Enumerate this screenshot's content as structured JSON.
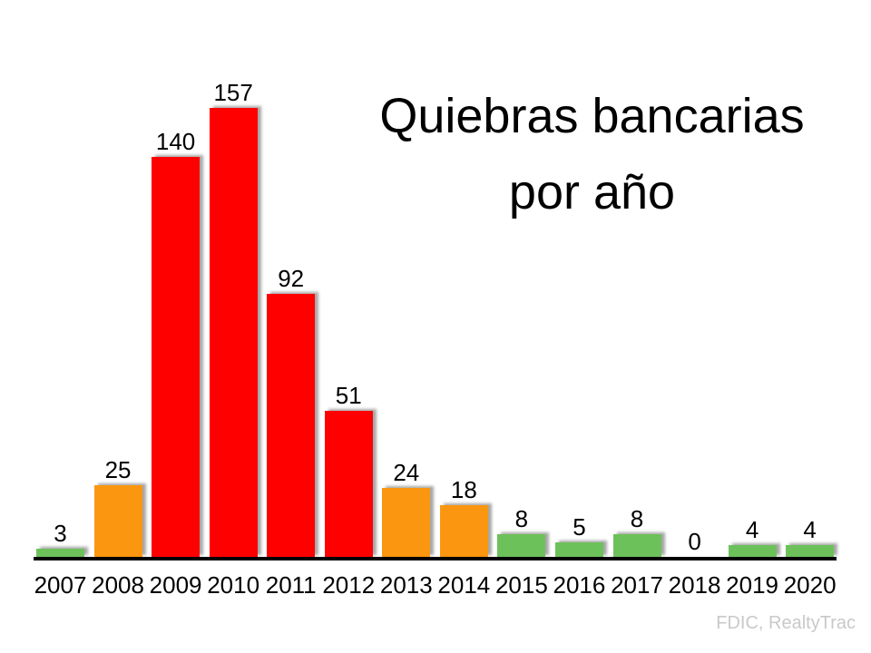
{
  "slide": {
    "title": "Quiebras bancarias por año",
    "source": "FDIC, RealtyTrac"
  },
  "chart_data": {
    "type": "bar",
    "title": "Quiebras bancarias por año",
    "categories": [
      "2007",
      "2008",
      "2009",
      "2010",
      "2011",
      "2012",
      "2013",
      "2014",
      "2015",
      "2016",
      "2017",
      "2018",
      "2019",
      "2020"
    ],
    "values": [
      3,
      25,
      140,
      157,
      92,
      51,
      24,
      18,
      8,
      5,
      8,
      0,
      4,
      4
    ],
    "bar_colors": [
      "green",
      "orange",
      "red",
      "red",
      "red",
      "red",
      "orange",
      "orange",
      "green",
      "green",
      "green",
      "none",
      "green",
      "green"
    ],
    "color_map": {
      "red": "#fe0000",
      "orange": "#fb9611",
      "green": "#6dc15a"
    },
    "value_labels_shown": true,
    "xlabel": "",
    "ylabel": "",
    "ylim": [
      0,
      165
    ],
    "grid": false,
    "legend": false,
    "axis_color": "#000000",
    "source": "FDIC, RealtyTrac"
  }
}
